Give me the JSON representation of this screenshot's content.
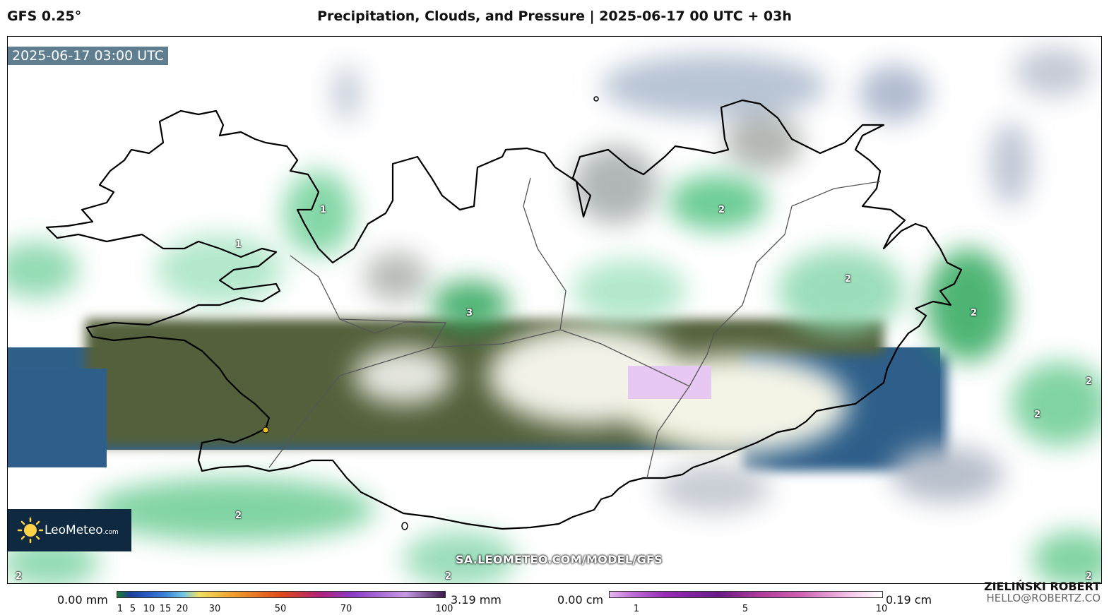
{
  "header": {
    "model": "GFS 0.25°",
    "title": "Precipitation, Clouds, and Pressure | 2025-06-17 00 UTC + 03h"
  },
  "map": {
    "timestamp": "2025-06-17 03:00 UTC",
    "watermark": "SA.LEOMETEO.COM/MODEL/GFS",
    "logo": {
      "name": "LeoMeteo",
      "suffix": ".com"
    },
    "labels": [
      {
        "text": "1",
        "id": "label-1-northwest"
      },
      {
        "text": "1",
        "id": "label-1-westfjords"
      },
      {
        "text": "2",
        "id": "label-2-north"
      },
      {
        "text": "2",
        "id": "label-2-northeast"
      },
      {
        "text": "3",
        "id": "label-3-central"
      },
      {
        "text": "2",
        "id": "label-2-eastfjords"
      },
      {
        "text": "2",
        "id": "label-2-east-sea"
      },
      {
        "text": "2",
        "id": "label-2-southeast-sea"
      },
      {
        "text": "2",
        "id": "label-2-southwest-sea"
      },
      {
        "text": "2",
        "id": "label-2-bottom-left"
      },
      {
        "text": "2",
        "id": "label-2-bottom-center"
      },
      {
        "text": "2",
        "id": "label-2-bottom-right"
      }
    ]
  },
  "colorbar_rain": {
    "min_label": "0.00 mm",
    "max_label": "3.19 mm",
    "ticks": [
      "1",
      "5",
      "10",
      "15",
      "20",
      "30",
      "50",
      "70",
      "100"
    ],
    "colors": [
      "#1a7a2e",
      "#1c3f9e",
      "#3a86d8",
      "#6fc4e8",
      "#f0e060",
      "#f0a030",
      "#e04a18",
      "#b0207a",
      "#8a3ac8",
      "#c79ae8",
      "#3a1a4a"
    ]
  },
  "colorbar_snow": {
    "min_label": "0.00 cm",
    "max_label": "0.19 cm",
    "ticks": [
      "1",
      "5",
      "10"
    ],
    "colors": [
      "#e7b8f0",
      "#9a2ab8",
      "#6a1a8a",
      "#d060b0",
      "#f8d0f0"
    ]
  },
  "credits": {
    "author": "ZIELIŃSKI ROBERT",
    "email": "HELLO@ROBERTZ.CO"
  },
  "colors": {
    "sea": "#2e5f8a",
    "land": "#4a5a35",
    "precip": "#39b86a",
    "cloud": "#b4bcc8",
    "timestamp_bg": "#5f7f90",
    "logo_bg": "#0f2a40"
  }
}
